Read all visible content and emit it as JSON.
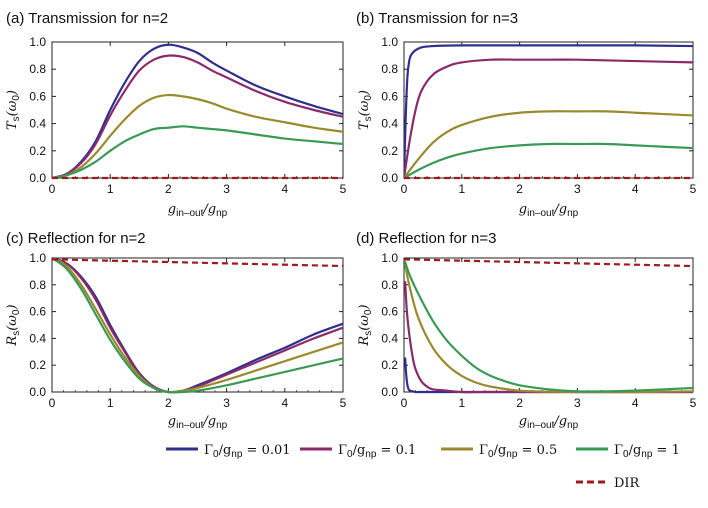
{
  "colors": {
    "0.01": "#2f2f8c",
    "0.1": "#8b2a6b",
    "0.5": "#9a8a2e",
    "1": "#3a9a55",
    "DIR": "#a11a1a"
  },
  "legend": [
    {
      "key": "0.01",
      "label": "Γ₀/g_np = 0.01"
    },
    {
      "key": "0.1",
      "label": "Γ₀/g_np = 0.1"
    },
    {
      "key": "0.5",
      "label": "Γ₀/g_np = 0.5"
    },
    {
      "key": "1",
      "label": "Γ₀/g_np = 1"
    },
    {
      "key": "DIR",
      "label": "DIR"
    }
  ],
  "chart_data": [
    {
      "type": "line",
      "title": "(a) Transmission for n=2",
      "xlabel": "g_in–out/g_np",
      "ylabel": "T_s(ω_0)",
      "xlim": [
        0,
        5
      ],
      "ylim": [
        0,
        1.0
      ],
      "xticks": [
        "0",
        "1",
        "2",
        "3",
        "4",
        "5"
      ],
      "yticks": [
        "0.0",
        "0.2",
        "0.4",
        "0.6",
        "0.8",
        "1.0"
      ],
      "grid": false,
      "series": [
        {
          "key": "0.01",
          "x": [
            0,
            0.25,
            0.5,
            0.75,
            1,
            1.25,
            1.5,
            1.75,
            2,
            2.25,
            2.5,
            2.75,
            3,
            3.5,
            4,
            4.5,
            5
          ],
          "y": [
            0,
            0.03,
            0.12,
            0.27,
            0.5,
            0.7,
            0.86,
            0.95,
            0.98,
            0.96,
            0.92,
            0.85,
            0.79,
            0.68,
            0.6,
            0.53,
            0.47
          ]
        },
        {
          "key": "0.1",
          "x": [
            0,
            0.25,
            0.5,
            0.75,
            1,
            1.25,
            1.5,
            1.75,
            2,
            2.25,
            2.5,
            2.75,
            3,
            3.5,
            4,
            4.5,
            5
          ],
          "y": [
            0,
            0.03,
            0.11,
            0.25,
            0.46,
            0.64,
            0.79,
            0.87,
            0.9,
            0.89,
            0.85,
            0.79,
            0.74,
            0.64,
            0.56,
            0.5,
            0.45
          ]
        },
        {
          "key": "0.5",
          "x": [
            0,
            0.25,
            0.5,
            0.75,
            1,
            1.25,
            1.5,
            1.75,
            2,
            2.25,
            2.5,
            2.75,
            3,
            3.5,
            4,
            4.5,
            5
          ],
          "y": [
            0,
            0.02,
            0.08,
            0.18,
            0.31,
            0.43,
            0.53,
            0.59,
            0.61,
            0.6,
            0.58,
            0.55,
            0.51,
            0.45,
            0.41,
            0.37,
            0.34
          ]
        },
        {
          "key": "1",
          "x": [
            0,
            0.25,
            0.5,
            0.75,
            1,
            1.25,
            1.5,
            1.75,
            2,
            2.25,
            2.5,
            2.75,
            3,
            3.5,
            4,
            4.5,
            5
          ],
          "y": [
            0,
            0.02,
            0.06,
            0.12,
            0.2,
            0.27,
            0.32,
            0.36,
            0.37,
            0.38,
            0.37,
            0.36,
            0.35,
            0.32,
            0.29,
            0.27,
            0.25
          ]
        },
        {
          "key": "DIR",
          "x": [
            0,
            5
          ],
          "y": [
            0,
            0
          ]
        }
      ]
    },
    {
      "type": "line",
      "title": "(b) Transmission for n=3",
      "xlabel": "g_in–out/g_np",
      "ylabel": "T_s(ω_0)",
      "xlim": [
        0,
        5
      ],
      "ylim": [
        0,
        1.0
      ],
      "xticks": [
        "0",
        "1",
        "2",
        "3",
        "4",
        "5"
      ],
      "yticks": [
        "0.0",
        "0.2",
        "0.4",
        "0.6",
        "0.8",
        "1.0"
      ],
      "grid": false,
      "series": [
        {
          "key": "0.01",
          "x": [
            0,
            0.03,
            0.06,
            0.1,
            0.15,
            0.2,
            0.3,
            0.5,
            1,
            2,
            3,
            4,
            5
          ],
          "y": [
            0,
            0.45,
            0.75,
            0.88,
            0.92,
            0.94,
            0.96,
            0.97,
            0.975,
            0.975,
            0.975,
            0.975,
            0.97
          ]
        },
        {
          "key": "0.1",
          "x": [
            0,
            0.1,
            0.2,
            0.3,
            0.5,
            0.75,
            1,
            1.5,
            2,
            2.5,
            3,
            4,
            5
          ],
          "y": [
            0,
            0.28,
            0.5,
            0.64,
            0.76,
            0.82,
            0.85,
            0.87,
            0.87,
            0.87,
            0.87,
            0.86,
            0.85
          ]
        },
        {
          "key": "0.5",
          "x": [
            0,
            0.25,
            0.5,
            0.75,
            1,
            1.5,
            2,
            2.5,
            3,
            3.5,
            4,
            4.5,
            5
          ],
          "y": [
            0,
            0.14,
            0.26,
            0.34,
            0.39,
            0.45,
            0.48,
            0.49,
            0.49,
            0.49,
            0.48,
            0.47,
            0.46
          ]
        },
        {
          "key": "1",
          "x": [
            0,
            0.25,
            0.5,
            0.75,
            1,
            1.5,
            2,
            2.5,
            3,
            3.5,
            4,
            4.5,
            5
          ],
          "y": [
            0,
            0.06,
            0.11,
            0.15,
            0.18,
            0.22,
            0.24,
            0.25,
            0.25,
            0.25,
            0.24,
            0.23,
            0.22
          ]
        },
        {
          "key": "DIR",
          "x": [
            0,
            5
          ],
          "y": [
            0,
            0
          ]
        }
      ]
    },
    {
      "type": "line",
      "title": "(c) Reflection for n=2",
      "xlabel": "g_in–out/g_np",
      "ylabel": "R_s(ω_0)",
      "xlim": [
        0,
        5
      ],
      "ylim": [
        0,
        1.0
      ],
      "xticks": [
        "0",
        "1",
        "2",
        "3",
        "4",
        "5"
      ],
      "yticks": [
        "0.0",
        "0.2",
        "0.4",
        "0.6",
        "0.8",
        "1.0"
      ],
      "grid": false,
      "series": [
        {
          "key": "0.01",
          "x": [
            0,
            0.25,
            0.5,
            0.75,
            1,
            1.25,
            1.5,
            1.75,
            2,
            2.25,
            2.5,
            3,
            3.5,
            4,
            4.5,
            5
          ],
          "y": [
            1,
            0.96,
            0.86,
            0.71,
            0.5,
            0.31,
            0.14,
            0.04,
            0,
            0.01,
            0.05,
            0.14,
            0.24,
            0.33,
            0.43,
            0.51
          ]
        },
        {
          "key": "0.1",
          "x": [
            0,
            0.25,
            0.5,
            0.75,
            1,
            1.25,
            1.5,
            1.75,
            2,
            2.25,
            2.5,
            3,
            3.5,
            4,
            4.5,
            5
          ],
          "y": [
            1,
            0.96,
            0.85,
            0.69,
            0.48,
            0.3,
            0.13,
            0.04,
            0,
            0.01,
            0.04,
            0.13,
            0.22,
            0.31,
            0.4,
            0.48
          ]
        },
        {
          "key": "0.5",
          "x": [
            0,
            0.25,
            0.5,
            0.75,
            1,
            1.25,
            1.5,
            1.75,
            2,
            2.25,
            2.5,
            3,
            3.5,
            4,
            4.5,
            5
          ],
          "y": [
            1,
            0.94,
            0.8,
            0.62,
            0.43,
            0.26,
            0.12,
            0.03,
            0,
            0.01,
            0.03,
            0.09,
            0.16,
            0.23,
            0.3,
            0.37
          ]
        },
        {
          "key": "1",
          "x": [
            0,
            0.25,
            0.5,
            0.75,
            1,
            1.25,
            1.5,
            1.75,
            2,
            2.25,
            2.5,
            3,
            3.5,
            4,
            4.5,
            5
          ],
          "y": [
            1,
            0.92,
            0.77,
            0.58,
            0.39,
            0.23,
            0.1,
            0.03,
            0,
            0,
            0.01,
            0.05,
            0.1,
            0.15,
            0.2,
            0.25
          ]
        },
        {
          "key": "DIR",
          "x": [
            0,
            5
          ],
          "y": [
            0.99,
            0.94
          ]
        }
      ]
    },
    {
      "type": "line",
      "title": "(d) Reflection for n=3",
      "xlabel": "g_in–out/g_np",
      "ylabel": "R_s(ω_0)",
      "xlim": [
        0,
        5
      ],
      "ylim": [
        0,
        1.0
      ],
      "xticks": [
        "0",
        "1",
        "2",
        "3",
        "4",
        "5"
      ],
      "yticks": [
        "0.0",
        "0.2",
        "0.4",
        "0.6",
        "0.8",
        "1.0"
      ],
      "grid": false,
      "series": [
        {
          "key": "0.01",
          "x": [
            0.02,
            0.04,
            0.06,
            0.08,
            0.1,
            0.15,
            0.2,
            0.3,
            0.5,
            1,
            5
          ],
          "y": [
            0.25,
            0.12,
            0.05,
            0.02,
            0.01,
            0.005,
            0,
            0,
            0,
            0,
            0
          ]
        },
        {
          "key": "0.1",
          "x": [
            0.02,
            0.05,
            0.1,
            0.15,
            0.2,
            0.3,
            0.4,
            0.5,
            0.75,
            1,
            1.5,
            2,
            5
          ],
          "y": [
            0.82,
            0.6,
            0.4,
            0.26,
            0.17,
            0.08,
            0.04,
            0.02,
            0.01,
            0,
            0,
            0,
            0
          ]
        },
        {
          "key": "0.5",
          "x": [
            0.02,
            0.1,
            0.25,
            0.5,
            0.75,
            1,
            1.25,
            1.5,
            2,
            2.5,
            3,
            4,
            5
          ],
          "y": [
            0.95,
            0.78,
            0.55,
            0.33,
            0.2,
            0.12,
            0.07,
            0.04,
            0.01,
            0.003,
            0,
            0,
            0.005
          ]
        },
        {
          "key": "1",
          "x": [
            0.02,
            0.1,
            0.25,
            0.5,
            0.75,
            1,
            1.25,
            1.5,
            1.75,
            2,
            2.5,
            3,
            3.5,
            4,
            5
          ],
          "y": [
            0.97,
            0.87,
            0.73,
            0.53,
            0.38,
            0.27,
            0.18,
            0.12,
            0.08,
            0.05,
            0.02,
            0.005,
            0.005,
            0.01,
            0.03
          ]
        },
        {
          "key": "DIR",
          "x": [
            0,
            5
          ],
          "y": [
            0.99,
            0.94
          ]
        }
      ]
    }
  ]
}
